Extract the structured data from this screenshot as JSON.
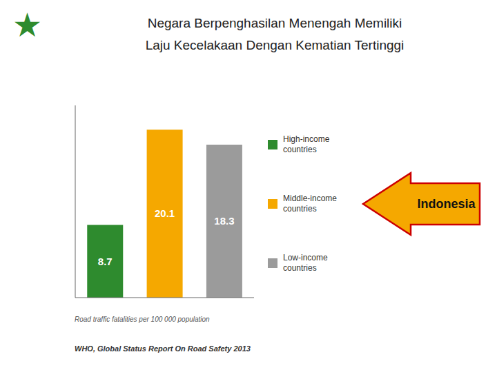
{
  "chart_data": {
    "type": "bar",
    "title": "Negara Berpenghasilan Menengah Memiliki\nLaju Kecelakaan Dengan Kematian Tertinggi",
    "categories": [
      "High-income\ncountries",
      "Middle-income\ncountries",
      "Low-income\ncountries"
    ],
    "values": [
      8.7,
      20.1,
      18.3
    ],
    "colors": [
      "#2e8b2e",
      "#f5a800",
      "#9b9b9b"
    ],
    "ylim": [
      0,
      23
    ],
    "data_labels": true,
    "tick_labels": false,
    "grid": false,
    "xlabel": "Road traffic fatalities per 100 000 population",
    "footer": "WHO, Global Status Report On Road Safety 2013",
    "annotations": [
      {
        "text": "★",
        "color": "#2e8b2e"
      },
      {
        "text": "Indonesia",
        "color": "#f5a800"
      }
    ]
  }
}
